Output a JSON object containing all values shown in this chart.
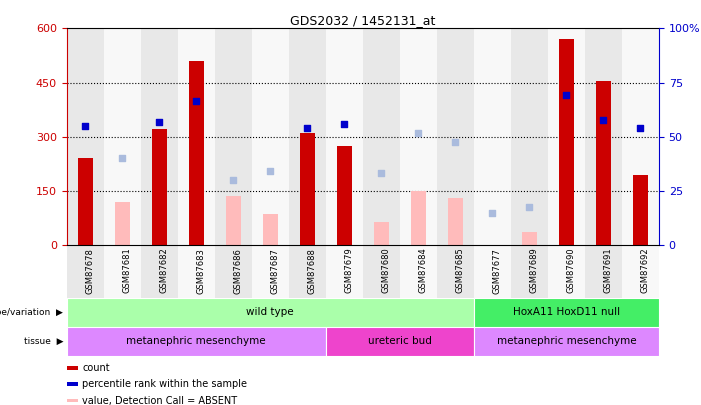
{
  "title": "GDS2032 / 1452131_at",
  "samples": [
    "GSM87678",
    "GSM87681",
    "GSM87682",
    "GSM87683",
    "GSM87686",
    "GSM87687",
    "GSM87688",
    "GSM87679",
    "GSM87680",
    "GSM87684",
    "GSM87685",
    "GSM87677",
    "GSM87689",
    "GSM87690",
    "GSM87691",
    "GSM87692"
  ],
  "count": [
    240,
    null,
    320,
    510,
    null,
    null,
    310,
    275,
    null,
    null,
    null,
    null,
    null,
    570,
    455,
    195
  ],
  "count_absent": [
    null,
    120,
    null,
    null,
    135,
    85,
    null,
    null,
    65,
    150,
    130,
    null,
    35,
    null,
    null,
    null
  ],
  "percentile_left": [
    330,
    null,
    340,
    400,
    null,
    null,
    325,
    335,
    null,
    null,
    null,
    null,
    null,
    415,
    345,
    325
  ],
  "rank_absent_left": [
    null,
    240,
    null,
    null,
    180,
    205,
    null,
    null,
    200,
    310,
    285,
    90,
    105,
    null,
    null,
    null
  ],
  "ylim_left": [
    0,
    600
  ],
  "ylim_right": [
    0,
    100
  ],
  "yticks_left": [
    0,
    150,
    300,
    450,
    600
  ],
  "yticks_right": [
    0,
    25,
    50,
    75,
    100
  ],
  "ytick_right_labels": [
    "0",
    "25",
    "50",
    "75",
    "100%"
  ],
  "bar_color_present": "#cc0000",
  "bar_color_absent": "#ffbbbb",
  "dot_color_present": "#0000cc",
  "dot_color_absent": "#aabbdd",
  "col_bg_even": "#e8e8e8",
  "col_bg_odd": "#f8f8f8",
  "genotype_groups": [
    {
      "label": "wild type",
      "start": 0,
      "end": 10,
      "color": "#aaffaa"
    },
    {
      "label": "HoxA11 HoxD11 null",
      "start": 11,
      "end": 15,
      "color": "#44ee66"
    }
  ],
  "tissue_groups": [
    {
      "label": "metanephric mesenchyme",
      "start": 0,
      "end": 6,
      "color": "#dd88ff"
    },
    {
      "label": "ureteric bud",
      "start": 7,
      "end": 10,
      "color": "#ee44cc"
    },
    {
      "label": "metanephric mesenchyme",
      "start": 11,
      "end": 15,
      "color": "#dd88ff"
    }
  ],
  "legend_items": [
    {
      "label": "count",
      "color": "#cc0000"
    },
    {
      "label": "percentile rank within the sample",
      "color": "#0000cc"
    },
    {
      "label": "value, Detection Call = ABSENT",
      "color": "#ffbbbb"
    },
    {
      "label": "rank, Detection Call = ABSENT",
      "color": "#aabbdd"
    }
  ],
  "background_color": "#ffffff"
}
